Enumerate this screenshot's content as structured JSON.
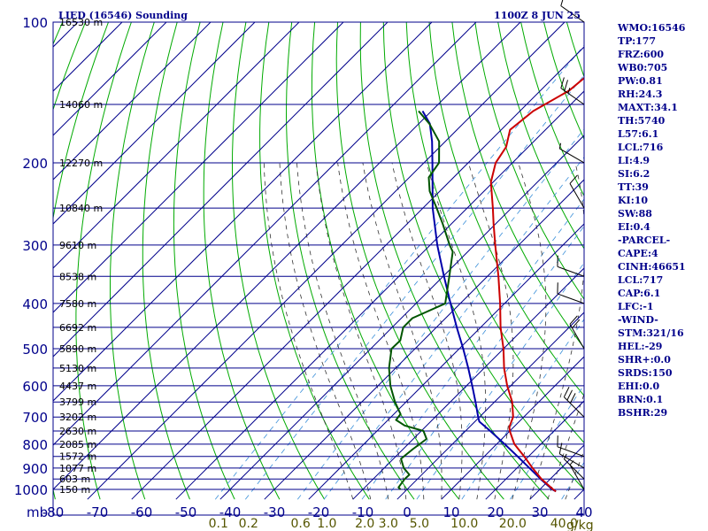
{
  "header": {
    "title": "LIED (16546) Sounding",
    "time": "1100Z  8 JUN 25"
  },
  "colors": {
    "border": "#00008b",
    "isobar": "#00008b",
    "isotherm": "#00008b",
    "dry_adiabat": "#00aa00",
    "moist_adiabat": "#333333",
    "mixing_ratio": "#3a8fd9",
    "temperature": "#cc0000",
    "dewpoint": "#005500",
    "parcel": "#0000aa",
    "wind": "#000000",
    "mixing_label": "#555500"
  },
  "side_panel": [
    "WMO:16546",
    "TP:177",
    "FRZ:600",
    "WB0:705",
    "PW:0.81",
    "RH:24.3",
    "MAXT:34.1",
    "TH:5740",
    "L57:6.1",
    "LCL:716",
    "LI:4.9",
    "SI:6.2",
    "TT:39",
    "KI:10",
    "SW:88",
    "EI:0.4",
    "-PARCEL-",
    "CAPE:4",
    "CINH:46651",
    "LCL:717",
    "CAP:6.1",
    "LFC:-1",
    "-WIND-",
    "STM:321/16",
    "HEL:-29",
    "SHR+:0.0",
    "SRDS:150",
    "EHI:0.0",
    "BRN:0.1",
    "BSHR:29"
  ],
  "chart_data": {
    "type": "skew-t log-p sounding",
    "x_unit_label": "mb",
    "x_ticks": [
      "-80",
      "-70",
      "-60",
      "-50",
      "-40",
      "-30",
      "-20",
      "-10",
      "0",
      "10",
      "20",
      "30",
      "40"
    ],
    "y_ticks": [
      100,
      200,
      300,
      400,
      500,
      600,
      700,
      800,
      900,
      1000
    ],
    "plim": [
      100,
      1050
    ],
    "isobars": [
      100,
      150,
      200,
      250,
      300,
      350,
      400,
      450,
      500,
      550,
      600,
      650,
      700,
      750,
      800,
      850,
      900,
      950,
      1000
    ],
    "heights": [
      {
        "p": 100,
        "label": "16530 m"
      },
      {
        "p": 150,
        "label": "14060 m"
      },
      {
        "p": 200,
        "label": "12270 m"
      },
      {
        "p": 250,
        "label": "10840 m"
      },
      {
        "p": 300,
        "label": "9610 m"
      },
      {
        "p": 350,
        "label": "8538 m"
      },
      {
        "p": 400,
        "label": "7580 m"
      },
      {
        "p": 450,
        "label": "6692 m"
      },
      {
        "p": 500,
        "label": "5890 m"
      },
      {
        "p": 550,
        "label": "5130 m"
      },
      {
        "p": 600,
        "label": "4437 m"
      },
      {
        "p": 650,
        "label": "3799 m"
      },
      {
        "p": 700,
        "label": "3202 m"
      },
      {
        "p": 750,
        "label": "2630 m"
      },
      {
        "p": 800,
        "label": "2085 m"
      },
      {
        "p": 850,
        "label": "1572 m"
      },
      {
        "p": 900,
        "label": "1077 m"
      },
      {
        "p": 950,
        "label": "603 m"
      },
      {
        "p": 1000,
        "label": "150 m"
      }
    ],
    "mixing_ratio_labels": [
      "0.1",
      "0.2",
      "0.6",
      "1.0",
      "2.0",
      "3.0",
      "5.0",
      "10.0",
      "20.0",
      "40.0"
    ],
    "mixing_ratio_unit": "g/kg",
    "mixing_ratio_values": [
      0.1,
      0.2,
      0.6,
      1.0,
      2.0,
      3.0,
      5.0,
      10.0,
      20.0,
      40.0
    ],
    "temperature": [
      {
        "p": 1010,
        "t": 34.1
      },
      {
        "p": 1000,
        "t": 33.0
      },
      {
        "p": 950,
        "t": 28.0
      },
      {
        "p": 900,
        "t": 23.5
      },
      {
        "p": 850,
        "t": 19.0
      },
      {
        "p": 800,
        "t": 14.0
      },
      {
        "p": 750,
        "t": 10.0
      },
      {
        "p": 735,
        "t": 9.0
      },
      {
        "p": 700,
        "t": 7.6
      },
      {
        "p": 650,
        "t": 4.0
      },
      {
        "p": 600,
        "t": -0.8
      },
      {
        "p": 550,
        "t": -5.5
      },
      {
        "p": 500,
        "t": -10.0
      },
      {
        "p": 450,
        "t": -15.5
      },
      {
        "p": 400,
        "t": -21.0
      },
      {
        "p": 350,
        "t": -27.5
      },
      {
        "p": 300,
        "t": -35.3
      },
      {
        "p": 270,
        "t": -40.5
      },
      {
        "p": 250,
        "t": -44.2
      },
      {
        "p": 220,
        "t": -50.5
      },
      {
        "p": 200,
        "t": -53.8
      },
      {
        "p": 185,
        "t": -55.0
      },
      {
        "p": 170,
        "t": -58.0
      },
      {
        "p": 155,
        "t": -57.0
      },
      {
        "p": 140,
        "t": -53.5
      },
      {
        "p": 125,
        "t": -52.5
      },
      {
        "p": 110,
        "t": -55.5
      },
      {
        "p": 100,
        "t": -59.0
      }
    ],
    "dewpoint": [
      {
        "p": 1000,
        "t": -1.5
      },
      {
        "p": 990,
        "t": -2.4
      },
      {
        "p": 950,
        "t": -2.9
      },
      {
        "p": 930,
        "t": -2.8
      },
      {
        "p": 900,
        "t": -5.6
      },
      {
        "p": 860,
        "t": -8.3
      },
      {
        "p": 820,
        "t": -7.8
      },
      {
        "p": 780,
        "t": -7.0
      },
      {
        "p": 750,
        "t": -9.5
      },
      {
        "p": 730,
        "t": -15.0
      },
      {
        "p": 710,
        "t": -18.2
      },
      {
        "p": 690,
        "t": -18.5
      },
      {
        "p": 650,
        "t": -22.5
      },
      {
        "p": 600,
        "t": -27.2
      },
      {
        "p": 550,
        "t": -31.5
      },
      {
        "p": 500,
        "t": -35.3
      },
      {
        "p": 480,
        "t": -35.2
      },
      {
        "p": 450,
        "t": -37.5
      },
      {
        "p": 430,
        "t": -37.5
      },
      {
        "p": 400,
        "t": -33.4
      },
      {
        "p": 350,
        "t": -38.6
      },
      {
        "p": 310,
        "t": -43.4
      },
      {
        "p": 300,
        "t": -45.6
      },
      {
        "p": 270,
        "t": -52.0
      },
      {
        "p": 250,
        "t": -56.9
      },
      {
        "p": 230,
        "t": -62.3
      },
      {
        "p": 215,
        "t": -65.6
      },
      {
        "p": 200,
        "t": -66.6
      },
      {
        "p": 180,
        "t": -71.4
      },
      {
        "p": 165,
        "t": -77.6
      },
      {
        "p": 155,
        "t": -82.9
      }
    ],
    "parcel": [
      {
        "p": 1010,
        "t": 34.1
      },
      {
        "p": 1000,
        "t": 32.8
      },
      {
        "p": 950,
        "t": 27.8
      },
      {
        "p": 900,
        "t": 22.8
      },
      {
        "p": 850,
        "t": 17.5
      },
      {
        "p": 800,
        "t": 11.8
      },
      {
        "p": 750,
        "t": 5.6
      },
      {
        "p": 716,
        "t": 1.0
      },
      {
        "p": 700,
        "t": -0.3
      },
      {
        "p": 650,
        "t": -4.3
      },
      {
        "p": 600,
        "t": -8.7
      },
      {
        "p": 550,
        "t": -13.6
      },
      {
        "p": 500,
        "t": -19.1
      },
      {
        "p": 450,
        "t": -25.4
      },
      {
        "p": 400,
        "t": -32.2
      },
      {
        "p": 350,
        "t": -39.8
      },
      {
        "p": 300,
        "t": -48.4
      },
      {
        "p": 250,
        "t": -57.8
      },
      {
        "p": 200,
        "t": -68.1
      },
      {
        "p": 180,
        "t": -73.0
      },
      {
        "p": 165,
        "t": -77.5
      },
      {
        "p": 155,
        "t": -82.0
      }
    ],
    "wind": [
      {
        "p": 1000,
        "dir": 330,
        "spd": 5
      },
      {
        "p": 950,
        "dir": 315,
        "spd": 5
      },
      {
        "p": 900,
        "dir": 300,
        "spd": 10
      },
      {
        "p": 850,
        "dir": 290,
        "spd": 10
      },
      {
        "p": 700,
        "dir": 315,
        "spd": 30
      },
      {
        "p": 500,
        "dir": 330,
        "spd": 20
      },
      {
        "p": 400,
        "dir": 290,
        "spd": 10
      },
      {
        "p": 350,
        "dir": 290,
        "spd": 10
      },
      {
        "p": 250,
        "dir": 330,
        "spd": 10
      },
      {
        "p": 200,
        "dir": 300,
        "spd": 5
      },
      {
        "p": 150,
        "dir": 305,
        "spd": 25
      },
      {
        "p": 100,
        "dir": 305,
        "spd": 10
      }
    ]
  }
}
